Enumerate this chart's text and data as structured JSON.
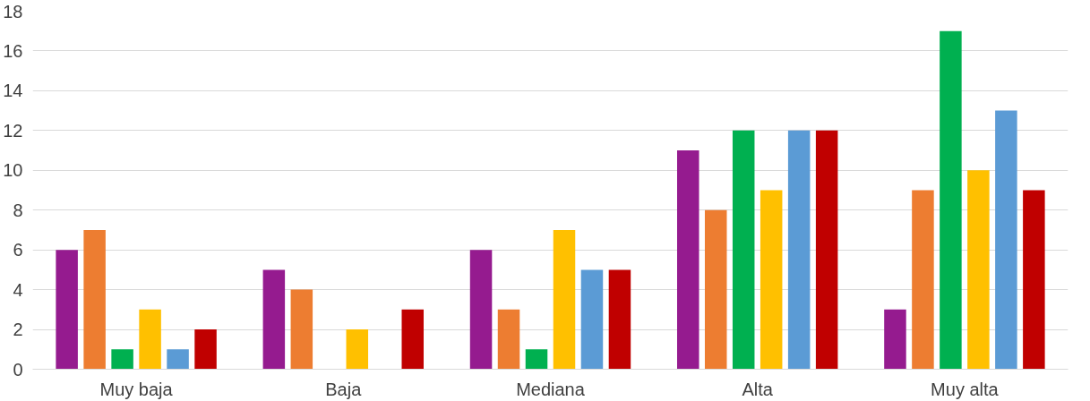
{
  "chart_data": {
    "type": "bar",
    "categories": [
      "Muy baja",
      "Baja",
      "Mediana",
      "Alta",
      "Muy alta"
    ],
    "series": [
      {
        "color": "#951b8f",
        "values": [
          6,
          5,
          6,
          11,
          3
        ]
      },
      {
        "color": "#ed7d31",
        "values": [
          7,
          4,
          3,
          8,
          9
        ]
      },
      {
        "color": "#00b050",
        "values": [
          1,
          0,
          1,
          12,
          17
        ]
      },
      {
        "color": "#ffc000",
        "values": [
          3,
          2,
          7,
          9,
          10
        ]
      },
      {
        "color": "#5b9bd5",
        "values": [
          1,
          0,
          5,
          12,
          13
        ]
      },
      {
        "color": "#c00000",
        "values": [
          2,
          3,
          5,
          12,
          9
        ]
      }
    ],
    "ylim": [
      0,
      18
    ],
    "yticks": [
      0,
      2,
      4,
      6,
      8,
      10,
      12,
      14,
      16,
      18
    ],
    "grid": "y"
  }
}
